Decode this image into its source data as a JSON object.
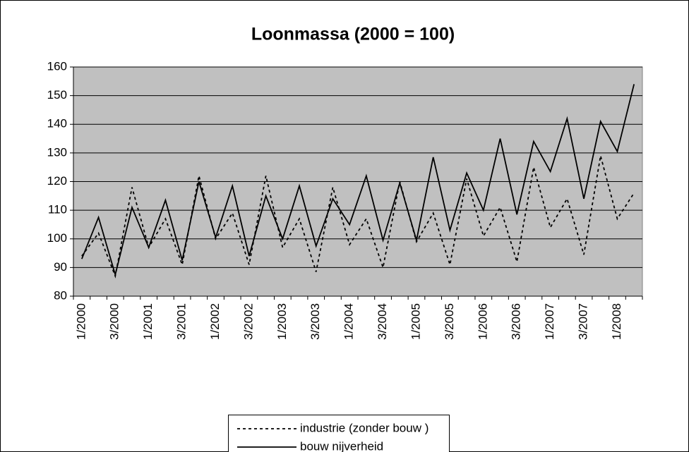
{
  "chart_data": {
    "type": "line",
    "title": "Loonmassa (2000 = 100)",
    "categories": [
      "1/2000",
      null,
      "3/2000",
      null,
      "1/2001",
      null,
      "3/2001",
      null,
      "1/2002",
      null,
      "3/2002",
      null,
      "1/2003",
      null,
      "3/2003",
      null,
      "1/2004",
      null,
      "3/2004",
      null,
      "1/2005",
      null,
      "3/2005",
      null,
      "1/2006",
      null,
      "3/2006",
      null,
      "1/2007",
      null,
      "3/2007",
      null,
      "1/2008",
      null
    ],
    "series": [
      {
        "name": "industrie (zonder bouw )",
        "color": "#000000",
        "style": "dashed",
        "values": [
          94,
          102,
          87,
          118,
          97,
          107,
          91,
          122,
          100,
          109,
          91,
          122,
          97,
          107,
          88.5,
          118,
          98,
          107,
          90,
          120,
          99,
          109,
          91,
          121,
          101,
          111,
          92,
          125,
          104,
          114,
          94.5,
          129,
          107,
          116
        ]
      },
      {
        "name": "bouw nijverheid",
        "color": "#000000",
        "style": "solid",
        "values": [
          93,
          107.5,
          87.5,
          111,
          97,
          113.5,
          92.5,
          120,
          100.5,
          118.5,
          94,
          115,
          100,
          118.5,
          97.5,
          114,
          105,
          122,
          99.5,
          119.5,
          99.5,
          128.5,
          103,
          123,
          110,
          135,
          108.5,
          134,
          123.5,
          142,
          114,
          141,
          130.5,
          154
        ]
      }
    ],
    "ylim": [
      80,
      160
    ],
    "yticks": [
      80,
      90,
      100,
      110,
      120,
      130,
      140,
      150,
      160
    ],
    "grid": true,
    "legend": "bottom",
    "plot_background": "#c0c0c0"
  }
}
